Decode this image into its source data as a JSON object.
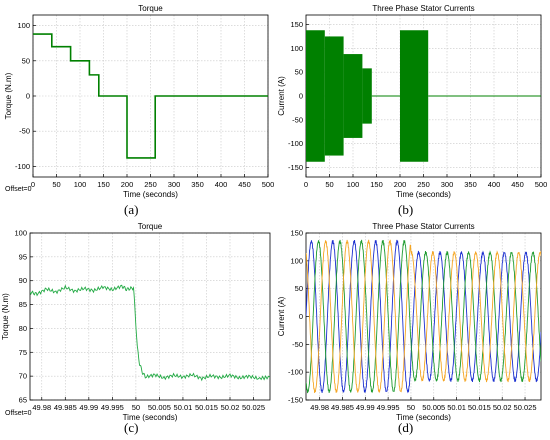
{
  "panels": [
    {
      "id": "a",
      "caption": "(a)",
      "offset_label": "Offset=0",
      "chart_data": {
        "type": "line",
        "title": "Torque",
        "xlabel": "Time (seconds)",
        "ylabel": "Torque (N.m)",
        "xlim": [
          0,
          500
        ],
        "ylim": [
          -115,
          115
        ],
        "xticks": [
          0,
          50,
          100,
          150,
          200,
          250,
          300,
          350,
          400,
          450,
          500
        ],
        "yticks": [
          -100,
          -50,
          0,
          50,
          100
        ],
        "grid": true,
        "series": [
          {
            "color": "#008000",
            "x": [
              0,
              40,
              40,
              80,
              80,
              120,
              120,
              140,
              140,
              200,
              200,
              260,
              260,
              500
            ],
            "y": [
              88,
              88,
              70,
              70,
              50,
              50,
              30,
              30,
              0,
              0,
              -88,
              -88,
              0,
              0
            ]
          }
        ]
      }
    },
    {
      "id": "b",
      "caption": "(b)",
      "chart_data": {
        "type": "area",
        "title": "Three Phase Stator Currents",
        "xlabel": "Time (seconds)",
        "ylabel": "Current (A)",
        "xlim": [
          0,
          500
        ],
        "ylim": [
          -170,
          170
        ],
        "xticks": [
          0,
          50,
          100,
          150,
          200,
          250,
          300,
          350,
          400,
          450,
          500
        ],
        "yticks": [
          -150,
          -100,
          -50,
          0,
          50,
          100,
          150
        ],
        "grid": true,
        "series": [
          {
            "color": "#008000",
            "x": [
              0,
              40,
              80,
              120,
              140,
              200,
              260,
              500
            ],
            "y_max": [
              138,
              125,
              88,
              58,
              0,
              138,
              0,
              0
            ],
            "y_min": [
              -138,
              -125,
              -88,
              -58,
              0,
              -138,
              0,
              0
            ]
          }
        ]
      }
    },
    {
      "id": "c",
      "caption": "(c)",
      "offset_label": "Offset=0",
      "chart_data": {
        "type": "line",
        "title": "Torque",
        "xlabel": "Time (seconds)",
        "ylabel": "Torque (N.m)",
        "xlim": [
          49.9775,
          50.0285
        ],
        "ylim": [
          65,
          100
        ],
        "xticks": [
          49.98,
          49.985,
          49.99,
          49.995,
          50,
          50.005,
          50.01,
          50.015,
          50.02,
          50.025
        ],
        "xticklabels": [
          "49.98",
          "49.985",
          "49.99",
          "49.995",
          "50",
          "50.005",
          "50.01",
          "50.015",
          "50.02",
          "50.025"
        ],
        "yticks": [
          65,
          70,
          75,
          80,
          85,
          90,
          95,
          100
        ],
        "grid": true,
        "series": [
          {
            "color": "#22aa44",
            "x": [
              49.9775,
              49.979,
              49.981,
              49.983,
              49.985,
              49.987,
              49.989,
              49.991,
              49.993,
              49.995,
              49.997,
              49.998,
              49.9995,
              49.9998,
              50.0003,
              50.0008,
              50.0014,
              50.002,
              50.004,
              50.006,
              50.008,
              50.01,
              50.012,
              50.014,
              50.016,
              50.018,
              50.02,
              50.022,
              50.024,
              50.026,
              50.0285
            ],
            "y": [
              87.6,
              87.2,
              88.3,
              87.6,
              88.6,
              87.8,
              88.4,
              87.9,
              88.7,
              88.1,
              88.9,
              88.2,
              88.5,
              84,
              76,
              72.5,
              70.8,
              69.8,
              70.3,
              69.6,
              70.2,
              69.8,
              70.3,
              69.5,
              70.1,
              69.7,
              70.2,
              69.6,
              70.0,
              69.5,
              69.8
            ]
          }
        ]
      }
    },
    {
      "id": "d",
      "caption": "(d)",
      "chart_data": {
        "type": "line",
        "title": "Three Phase Stator Currents",
        "xlabel": "Time (seconds)",
        "ylabel": "Current (A)",
        "xlim": [
          49.977,
          50.0285
        ],
        "ylim": [
          -150,
          150
        ],
        "xticks": [
          49.98,
          49.985,
          49.99,
          49.995,
          50,
          50.005,
          50.01,
          50.015,
          50.02,
          50.025
        ],
        "xticklabels": [
          "49.98",
          "49.985",
          "49.99",
          "49.995",
          "50",
          "50.005",
          "50.01",
          "50.015",
          "50.02",
          "50.025"
        ],
        "yticks": [
          -150,
          -100,
          -50,
          0,
          50,
          100,
          150
        ],
        "grid": true,
        "waveform": "three-phase sinusoid, peak ~135 A before t=50 s and ~115 A after, period ~0.0047 s",
        "series": [
          {
            "color": "#1a2ed0",
            "phase_offset_deg": 0
          },
          {
            "color": "#1d9b2e",
            "phase_offset_deg": -120
          },
          {
            "color": "#f5a623",
            "phase_offset_deg": 120
          }
        ]
      }
    }
  ]
}
